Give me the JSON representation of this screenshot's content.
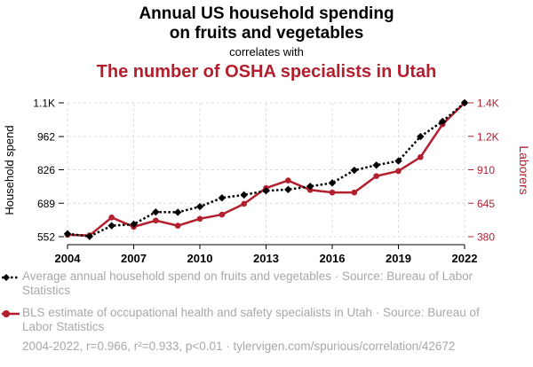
{
  "header": {
    "line1": "Annual US household spending",
    "line2": "on fruits and vegetables",
    "connector": "correlates with",
    "line3": "The number of OSHA specialists in Utah"
  },
  "colors": {
    "series1": "#000000",
    "series2": "#b41f2e",
    "legend_text": "#a8a8a8"
  },
  "legend": {
    "series1": "Average annual household spend on fruits and vegetables · Source: Bureau of Labor Statistics",
    "series2": "BLS estimate of occupational health and safety specialists in Utah · Source: Bureau of Labor Statistics"
  },
  "footer": "2004-2022, r=0.966, r²=0.933, p<0.01 · tylervigen.com/spurious/correlation/42672",
  "chart_data": {
    "type": "line",
    "x": [
      2004,
      2005,
      2006,
      2007,
      2008,
      2009,
      2010,
      2011,
      2012,
      2013,
      2014,
      2015,
      2016,
      2017,
      2018,
      2019,
      2020,
      2021,
      2022
    ],
    "xticks": [
      "2004",
      "2007",
      "2010",
      "2013",
      "2016",
      "2019",
      "2022"
    ],
    "ylabel_left": "Household spend",
    "ylabel_right": "Laborers",
    "yticks_left": [
      {
        "value": 552,
        "label": "552"
      },
      {
        "value": 689,
        "label": "689"
      },
      {
        "value": 826,
        "label": "826"
      },
      {
        "value": 962,
        "label": "962"
      },
      {
        "value": 1100,
        "label": "1.1K"
      }
    ],
    "yticks_right": [
      {
        "value": 380,
        "label": "380"
      },
      {
        "value": 645,
        "label": "645"
      },
      {
        "value": 910,
        "label": "910"
      },
      {
        "value": 1200,
        "label": "1.2K"
      },
      {
        "value": 1400,
        "label": "1.4K"
      }
    ],
    "ylim_left": [
      552,
      1100
    ],
    "ylim_right": [
      380,
      1440
    ],
    "series": [
      {
        "axis": "left",
        "style": "dotted",
        "marker": "diamond",
        "values": [
          564,
          553,
          597,
          603,
          653,
          652,
          675,
          711,
          723,
          740,
          745,
          758,
          772,
          824,
          845,
          862,
          962,
          1024,
          1100
        ]
      },
      {
        "axis": "right",
        "style": "solid",
        "marker": "circle",
        "values": [
          395,
          390,
          532,
          458,
          508,
          467,
          522,
          555,
          640,
          765,
          825,
          750,
          730,
          730,
          860,
          900,
          1010,
          1270,
          1440
        ]
      }
    ]
  }
}
